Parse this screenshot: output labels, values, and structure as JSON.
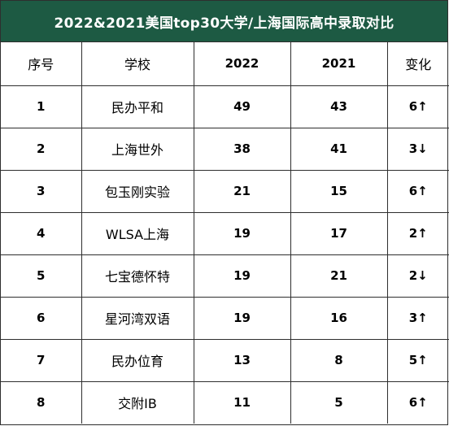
{
  "title": "2022&2021美国top30大学/上海国际高中录取对比",
  "headers": {
    "rank": "序号",
    "school": "学校",
    "y2022": "2022",
    "y2021": "2021",
    "change": "变化"
  },
  "rows": [
    {
      "rank": "1",
      "school": "民办平和",
      "y2022": "49",
      "y2021": "43",
      "change": "6↑"
    },
    {
      "rank": "2",
      "school": "上海世外",
      "y2022": "38",
      "y2021": "41",
      "change": "3↓"
    },
    {
      "rank": "3",
      "school": "包玉刚实验",
      "y2022": "21",
      "y2021": "15",
      "change": "6↑"
    },
    {
      "rank": "4",
      "school": "WLSA上海",
      "y2022": "19",
      "y2021": "17",
      "change": "2↑"
    },
    {
      "rank": "5",
      "school": "七宝德怀特",
      "y2022": "19",
      "y2021": "21",
      "change": "2↓"
    },
    {
      "rank": "6",
      "school": "星河湾双语",
      "y2022": "19",
      "y2021": "16",
      "change": "3↑"
    },
    {
      "rank": "7",
      "school": "民办位育",
      "y2022": "13",
      "y2021": "8",
      "change": "5↑"
    },
    {
      "rank": "8",
      "school": "交附IB",
      "y2022": "11",
      "y2021": "5",
      "change": "6↑"
    }
  ],
  "colors": {
    "title_bg": "#1d5a43",
    "title_text": "#ffffff",
    "border": "#2e2e2e"
  }
}
